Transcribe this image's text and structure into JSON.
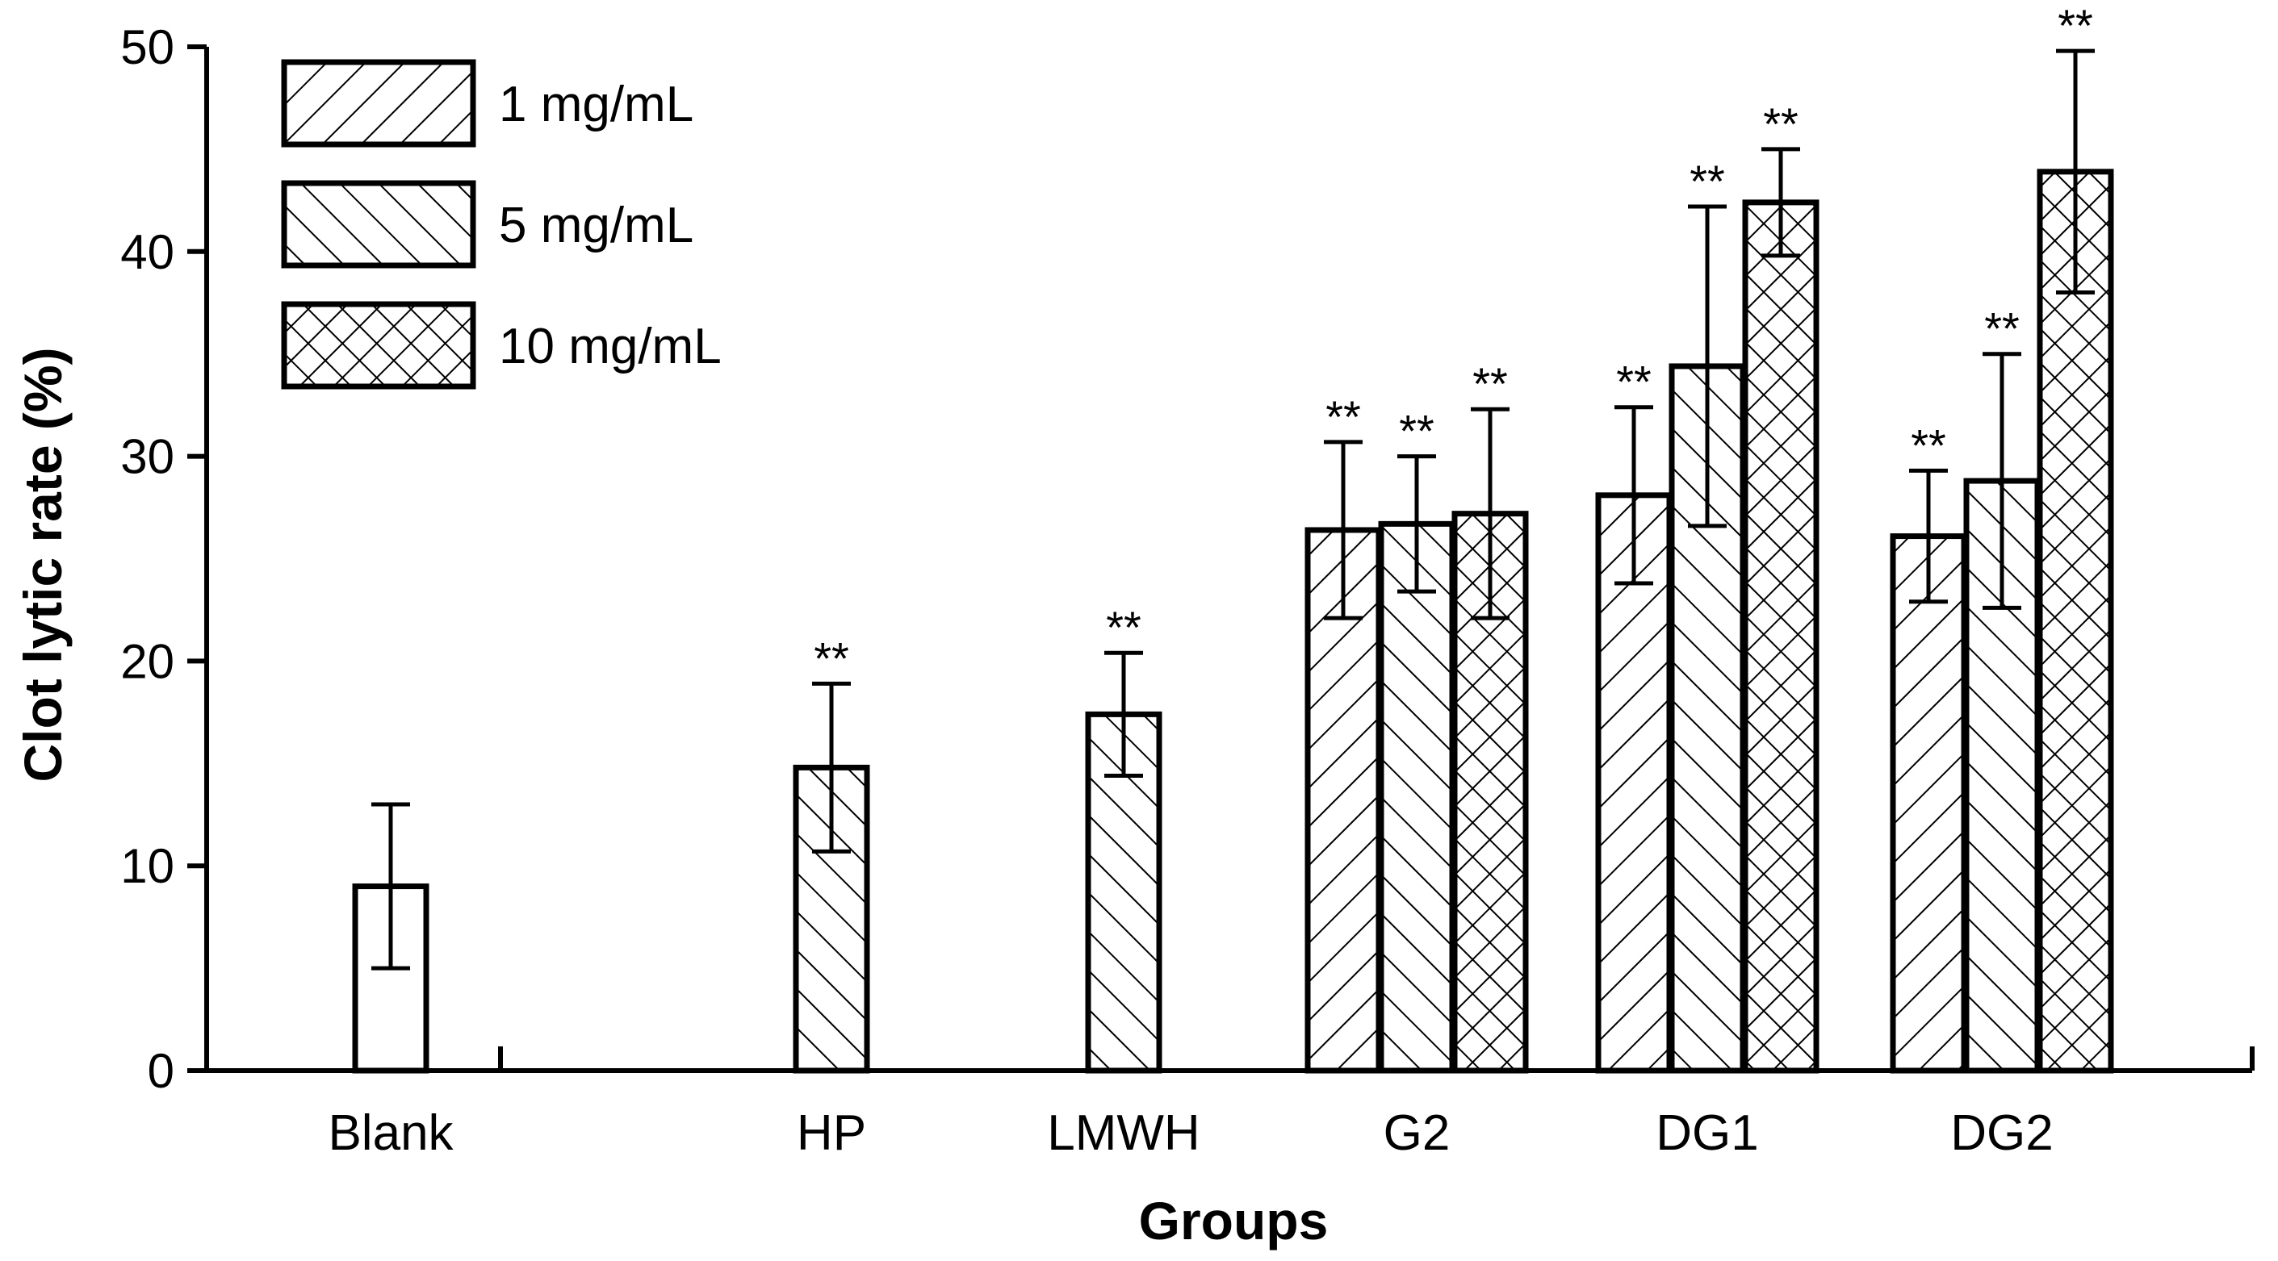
{
  "chart_data": {
    "type": "bar",
    "title": "",
    "xlabel": "Groups",
    "ylabel": "Clot lytic rate (%)",
    "ylim": [
      0,
      50
    ],
    "yticks": [
      "0",
      "10",
      "20",
      "30",
      "40",
      "50"
    ],
    "grid": false,
    "legend_position": "top-left",
    "categories": [
      "Blank",
      "HP",
      "LMWH",
      "G2",
      "DG1",
      "DG2"
    ],
    "series": [
      {
        "name": "1 mg/mL",
        "pattern": "forward-hatch"
      },
      {
        "name": "5 mg/mL",
        "pattern": "back-hatch"
      },
      {
        "name": "10 mg/mL",
        "pattern": "cross-hatch"
      }
    ],
    "bars": [
      {
        "category": "Blank",
        "series": "",
        "value": 9.0,
        "error": 4.0,
        "significance": ""
      },
      {
        "category": "HP",
        "series": "5 mg/mL",
        "value": 14.8,
        "error": 4.1,
        "significance": "**"
      },
      {
        "category": "LMWH",
        "series": "5 mg/mL",
        "value": 17.4,
        "error": 3.0,
        "significance": "**"
      },
      {
        "category": "G2",
        "series": "1 mg/mL",
        "value": 26.4,
        "error": 4.3,
        "significance": "**"
      },
      {
        "category": "G2",
        "series": "5 mg/mL",
        "value": 26.7,
        "error": 3.3,
        "significance": "**"
      },
      {
        "category": "G2",
        "series": "10 mg/mL",
        "value": 27.2,
        "error": 5.1,
        "significance": "**"
      },
      {
        "category": "DG1",
        "series": "1 mg/mL",
        "value": 28.1,
        "error": 4.3,
        "significance": "**"
      },
      {
        "category": "DG1",
        "series": "5 mg/mL",
        "value": 34.4,
        "error": 7.8,
        "significance": "**"
      },
      {
        "category": "DG1",
        "series": "10 mg/mL",
        "value": 42.4,
        "error": 2.6,
        "significance": "**"
      },
      {
        "category": "DG2",
        "series": "1 mg/mL",
        "value": 26.1,
        "error": 3.2,
        "significance": "**"
      },
      {
        "category": "DG2",
        "series": "5 mg/mL",
        "value": 28.8,
        "error": 6.2,
        "significance": "**"
      },
      {
        "category": "DG2",
        "series": "10 mg/mL",
        "value": 43.9,
        "error": 5.9,
        "significance": "**"
      }
    ]
  }
}
